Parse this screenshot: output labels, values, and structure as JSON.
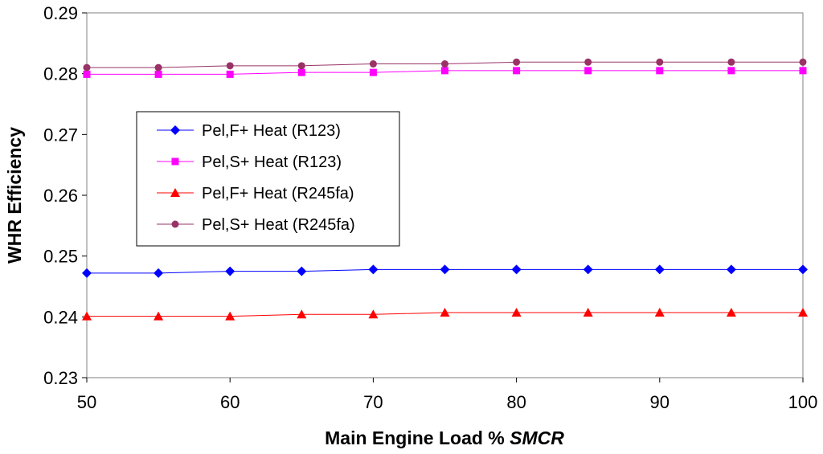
{
  "chart_data": {
    "type": "line",
    "title": "",
    "xlabel": "Main Engine Load %",
    "xlabel_italic": "SMCR",
    "ylabel": "WHR Efficiency",
    "xlim": [
      50,
      100
    ],
    "ylim": [
      0.23,
      0.29
    ],
    "xticks": [
      50,
      60,
      70,
      80,
      90,
      100
    ],
    "yticks": [
      0.23,
      0.24,
      0.25,
      0.26,
      0.27,
      0.28,
      0.29
    ],
    "ytick_labels": [
      "0.23",
      "0.24",
      "0.25",
      "0.26",
      "0.27",
      "0.28",
      "0.29"
    ],
    "grid": false,
    "legend_position": "left",
    "x": [
      50,
      55,
      60,
      65,
      70,
      75,
      80,
      85,
      90,
      95,
      100
    ],
    "series": [
      {
        "name": "Pel,F+ Heat (R123)",
        "color": "#0000ff",
        "marker": "diamond",
        "values": [
          0.2472,
          0.2472,
          0.2475,
          0.2475,
          0.2478,
          0.2478,
          0.2478,
          0.2478,
          0.2478,
          0.2478,
          0.2478
        ]
      },
      {
        "name": "Pel,S+ Heat (R123)",
        "color": "#ff00ff",
        "marker": "square",
        "values": [
          0.2799,
          0.2799,
          0.2799,
          0.2802,
          0.2802,
          0.2805,
          0.2805,
          0.2805,
          0.2805,
          0.2805,
          0.2805
        ]
      },
      {
        "name": "Pel,F+ Heat (R245fa)",
        "color": "#ff0000",
        "marker": "triangle",
        "values": [
          0.2401,
          0.2401,
          0.2401,
          0.2404,
          0.2404,
          0.2407,
          0.2407,
          0.2407,
          0.2407,
          0.2407,
          0.2407
        ]
      },
      {
        "name": "Pel,S+ Heat (R245fa)",
        "color": "#993366",
        "marker": "circle",
        "values": [
          0.281,
          0.281,
          0.2813,
          0.2813,
          0.2816,
          0.2816,
          0.2819,
          0.2819,
          0.2819,
          0.2819,
          0.2819
        ]
      }
    ]
  }
}
